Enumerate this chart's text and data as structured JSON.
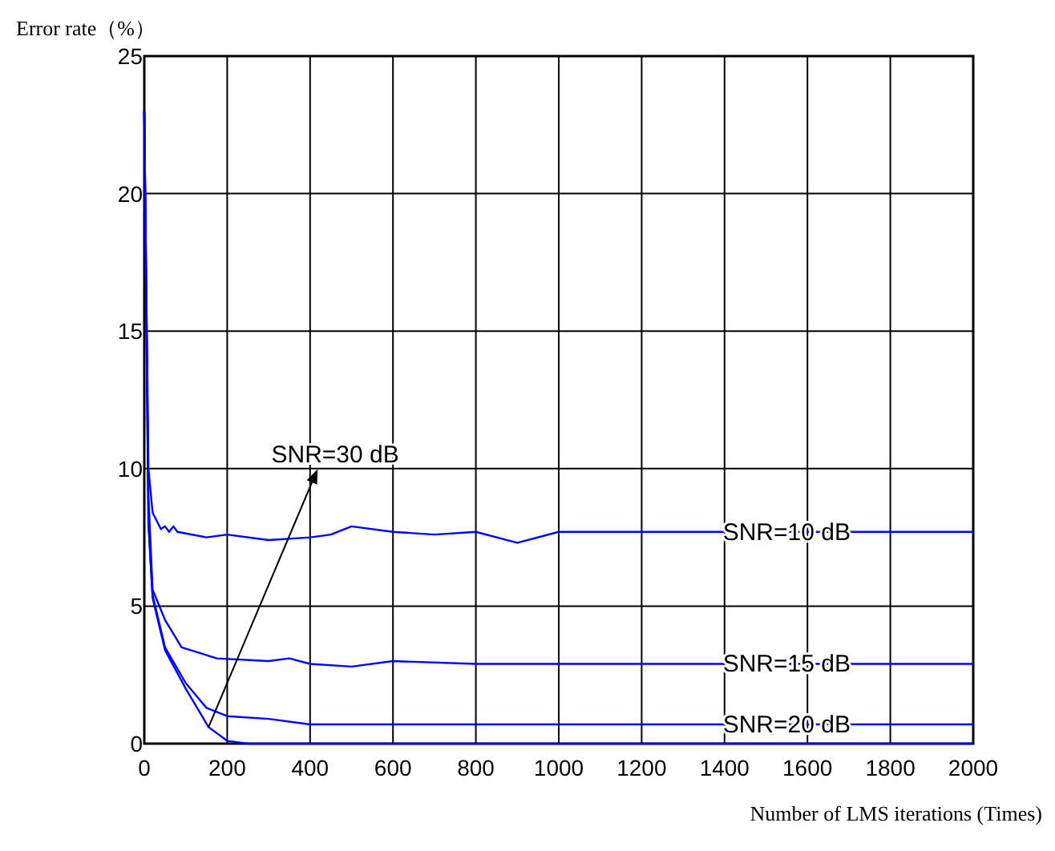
{
  "chart_data": {
    "type": "line",
    "ylabel": "Error rate（%）",
    "xlabel": "Number of LMS iterations (Times)",
    "xlim": [
      0,
      2000
    ],
    "xticks": [
      0,
      200,
      400,
      600,
      800,
      1000,
      1200,
      1400,
      1600,
      1800,
      2000
    ],
    "ylim": [
      0,
      25
    ],
    "yticks": [
      0,
      5,
      10,
      15,
      20,
      25
    ],
    "grid": true,
    "line_style": "solid",
    "series": [
      {
        "name": "SNR=10 dB",
        "color": "#0000ff",
        "x": [
          0,
          10,
          20,
          40,
          50,
          60,
          70,
          80,
          150,
          200,
          300,
          400,
          450,
          500,
          600,
          700,
          800,
          900,
          1000,
          2000
        ],
        "values": [
          23,
          10,
          8.4,
          7.8,
          7.9,
          7.7,
          7.9,
          7.7,
          7.5,
          7.6,
          7.4,
          7.5,
          7.6,
          7.9,
          7.7,
          7.6,
          7.7,
          7.3,
          7.7,
          7.7
        ]
      },
      {
        "name": "SNR=15 dB",
        "color": "#0000ff",
        "x": [
          0,
          10,
          20,
          50,
          90,
          175,
          300,
          350,
          400,
          500,
          600,
          800,
          1000,
          2000
        ],
        "values": [
          23,
          9,
          5.6,
          4.5,
          3.5,
          3.1,
          3.0,
          3.1,
          2.9,
          2.8,
          3.0,
          2.9,
          2.9,
          2.9
        ]
      },
      {
        "name": "SNR=20 dB",
        "color": "#0000ff",
        "x": [
          0,
          10,
          20,
          50,
          100,
          150,
          200,
          300,
          400,
          2000
        ],
        "values": [
          23,
          8,
          5.4,
          3.5,
          2.2,
          1.3,
          1.0,
          0.9,
          0.7,
          0.7
        ]
      },
      {
        "color": "#0000ff",
        "x": [
          0,
          10,
          20,
          50,
          100,
          155,
          200,
          250,
          2000
        ],
        "values": [
          23,
          8,
          5.3,
          3.4,
          2.0,
          0.6,
          0.1,
          0,
          0
        ]
      }
    ],
    "annotations": [
      {
        "text": "SNR=30 dB",
        "x": 155,
        "y": 0.6
      }
    ]
  }
}
